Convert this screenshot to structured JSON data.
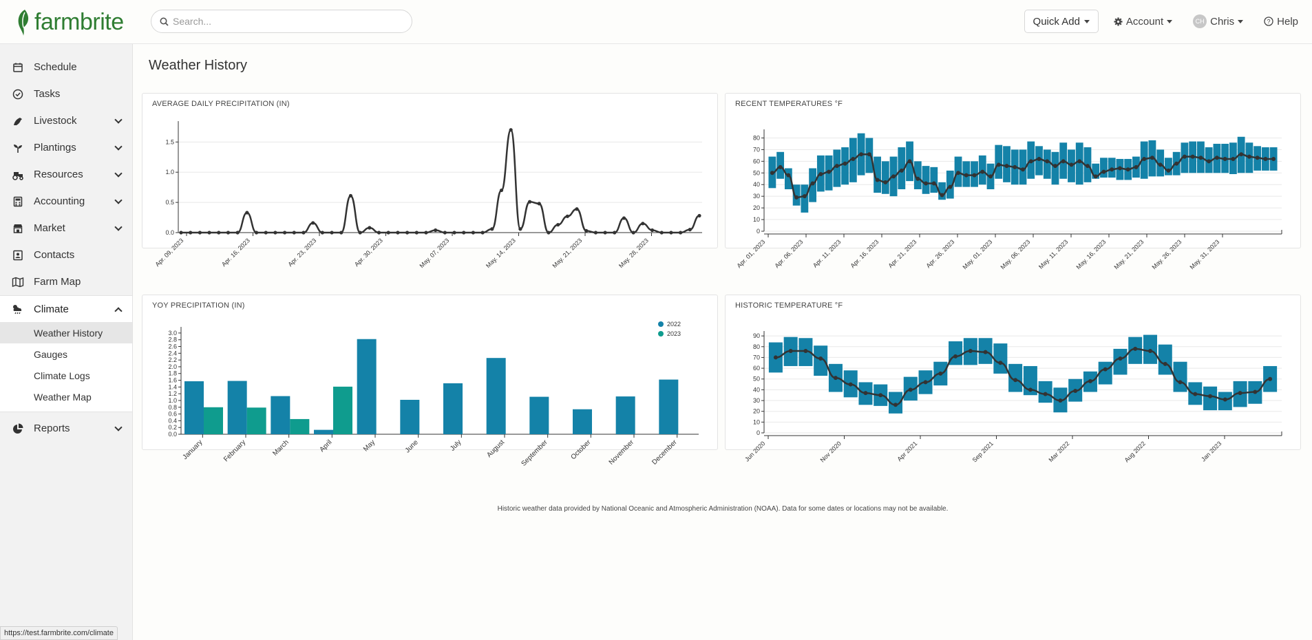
{
  "app": {
    "brand": "farmbrite",
    "search_placeholder": "Search...",
    "quick_add": "Quick Add",
    "account": "Account",
    "user_initials": "CH",
    "user": "Chris",
    "help": "Help",
    "brand_color": "#2f7d32",
    "accent": "#1482a8"
  },
  "sidebar": {
    "items": [
      {
        "label": "Schedule",
        "icon": "calendar-icon"
      },
      {
        "label": "Tasks",
        "icon": "check-circle-icon"
      },
      {
        "label": "Livestock",
        "icon": "horse-icon",
        "expand": true
      },
      {
        "label": "Plantings",
        "icon": "seedling-icon",
        "expand": true
      },
      {
        "label": "Resources",
        "icon": "tractor-icon",
        "expand": true
      },
      {
        "label": "Accounting",
        "icon": "calculator-icon",
        "expand": true
      },
      {
        "label": "Market",
        "icon": "store-icon",
        "expand": true
      },
      {
        "label": "Contacts",
        "icon": "contact-card-icon"
      },
      {
        "label": "Farm Map",
        "icon": "map-icon"
      }
    ],
    "climate": "Climate",
    "climate_sub": [
      "Weather History",
      "Gauges",
      "Climate Logs",
      "Weather Map"
    ],
    "reports": "Reports"
  },
  "page": {
    "title": "Weather History",
    "footnote": "Historic weather data provided by National Oceanic and Atmospheric Administration (NOAA). Data for some dates or locations may not be available.",
    "status_url": "https://test.farmbrite.com/climate"
  },
  "chart_data": [
    {
      "type": "line",
      "title": "AVERAGE DAILY PRECIPITATION (IN)",
      "x_ticks": [
        "Apr. 09, 2023",
        "Apr. 16, 2023",
        "Apr. 23, 2023",
        "Apr. 30, 2023",
        "May. 07, 2023",
        "May. 14, 2023",
        "May. 21, 2023",
        "May. 28, 2023"
      ],
      "y_ticks": [
        "0.0",
        "0.5",
        "1.0",
        "1.5"
      ],
      "ylim": [
        0,
        1.8
      ],
      "values": [
        0,
        0,
        0,
        0,
        0,
        0,
        0,
        0.33,
        0,
        0,
        0,
        0,
        0,
        0,
        0.16,
        0,
        0,
        0,
        0.61,
        0,
        0.08,
        0,
        0,
        0,
        0,
        0,
        0,
        0.04,
        0,
        0,
        0,
        0,
        0,
        0.06,
        0.7,
        1.7,
        0.06,
        0.51,
        0.48,
        0,
        0.13,
        0.27,
        0.39,
        0.03,
        0,
        0,
        0,
        0.24,
        0,
        0.15,
        0.04,
        0,
        0,
        0,
        0.05,
        0.28
      ]
    },
    {
      "type": "candlestick-line",
      "title": "RECENT TEMPERATURES °F",
      "x_ticks": [
        "Apr. 01, 2023",
        "Apr. 06, 2023",
        "Apr. 11, 2023",
        "Apr. 16, 2023",
        "Apr. 21, 2023",
        "Apr. 26, 2023",
        "May. 01, 2023",
        "May. 06, 2023",
        "May. 11, 2023",
        "May. 16, 2023",
        "May. 21, 2023",
        "May. 26, 2023",
        "May. 31, 2023"
      ],
      "y_ticks": [
        "0",
        "10",
        "20",
        "30",
        "40",
        "50",
        "60",
        "70",
        "80"
      ],
      "ylim": [
        0,
        85
      ],
      "avg": [
        50,
        55,
        48,
        29,
        30,
        41,
        49,
        51,
        56,
        58,
        62,
        66,
        66,
        44,
        42,
        47,
        52,
        60,
        45,
        41,
        41,
        31,
        38,
        50,
        48,
        48,
        51,
        47,
        57,
        56,
        55,
        53,
        60,
        62,
        60,
        56,
        60,
        57,
        60,
        56,
        47,
        51,
        53,
        54,
        53,
        55,
        62,
        63,
        57,
        52,
        58,
        64,
        64,
        63,
        60,
        63,
        62,
        62,
        66,
        64,
        63,
        62,
        62
      ],
      "low": [
        37,
        45,
        36,
        22,
        16,
        25,
        34,
        35,
        38,
        40,
        42,
        48,
        50,
        33,
        32,
        30,
        36,
        43,
        36,
        32,
        33,
        27,
        28,
        38,
        38,
        38,
        40,
        36,
        45,
        42,
        40,
        40,
        45,
        48,
        45,
        40,
        45,
        42,
        40,
        42,
        45,
        46,
        46,
        44,
        44,
        46,
        45,
        47,
        47,
        48,
        48,
        50,
        50,
        50,
        50,
        50,
        50,
        49,
        50,
        50,
        52,
        52,
        52
      ],
      "high": [
        64,
        68,
        54,
        40,
        40,
        54,
        65,
        65,
        70,
        72,
        80,
        84,
        80,
        64,
        60,
        64,
        72,
        77,
        60,
        56,
        55,
        42,
        52,
        64,
        60,
        60,
        65,
        58,
        74,
        73,
        70,
        70,
        77,
        73,
        70,
        68,
        76,
        70,
        76,
        72,
        58,
        63,
        63,
        62,
        62,
        64,
        77,
        78,
        70,
        63,
        68,
        76,
        77,
        77,
        72,
        75,
        75,
        76,
        81,
        76,
        73,
        72,
        72
      ]
    },
    {
      "type": "bar",
      "title": "YOY PRECIPITATION (IN)",
      "categories": [
        "January",
        "February",
        "March",
        "April",
        "May",
        "June",
        "July",
        "August",
        "September",
        "October",
        "November",
        "December"
      ],
      "y_ticks": [
        "0.0",
        "0.2",
        "0.4",
        "0.6",
        "0.8",
        "1.0",
        "1.2",
        "1.4",
        "1.6",
        "1.8",
        "2.0",
        "2.2",
        "2.4",
        "2.6",
        "2.8",
        "3.0"
      ],
      "ylim": [
        0,
        3.1
      ],
      "series": [
        {
          "name": "2022",
          "color": "#1482a8",
          "values": [
            1.57,
            1.58,
            1.13,
            0.13,
            2.82,
            1.02,
            1.51,
            2.26,
            1.11,
            0.74,
            1.12,
            1.62
          ]
        },
        {
          "name": "2023",
          "color": "#0f9c8e",
          "values": [
            0.8,
            0.79,
            0.45,
            1.41,
            null,
            null,
            null,
            null,
            null,
            null,
            null,
            null
          ]
        }
      ],
      "legend": "top-right"
    },
    {
      "type": "candlestick-line",
      "title": "HISTORIC TEMPERATURE °F",
      "x_ticks": [
        "Jun 2020",
        "Nov 2020",
        "Apr 2021",
        "Sep 2021",
        "Mar 2022",
        "Aug 2022",
        "Jan 2023"
      ],
      "y_ticks": [
        "0",
        "10",
        "20",
        "30",
        "40",
        "50",
        "60",
        "70",
        "80",
        "90"
      ],
      "ylim": [
        0,
        92
      ],
      "avg": [
        70,
        76,
        76,
        69,
        51,
        45,
        37,
        35,
        26,
        40,
        47,
        55,
        71,
        76,
        75,
        65,
        49,
        40,
        36,
        30,
        39,
        48,
        59,
        69,
        78,
        76,
        64,
        47,
        36,
        34,
        31,
        37,
        38,
        50
      ],
      "low": [
        56,
        62,
        62,
        53,
        38,
        33,
        26,
        25,
        18,
        30,
        36,
        44,
        63,
        63,
        64,
        55,
        38,
        35,
        28,
        19,
        29,
        38,
        45,
        54,
        64,
        64,
        54,
        38,
        26,
        21,
        21,
        24,
        27,
        38
      ],
      "high": [
        84,
        89,
        88,
        81,
        64,
        58,
        47,
        45,
        38,
        52,
        58,
        66,
        85,
        88,
        88,
        83,
        64,
        62,
        48,
        42,
        50,
        57,
        66,
        78,
        89,
        91,
        82,
        66,
        47,
        43,
        38,
        48,
        48,
        62
      ]
    }
  ]
}
